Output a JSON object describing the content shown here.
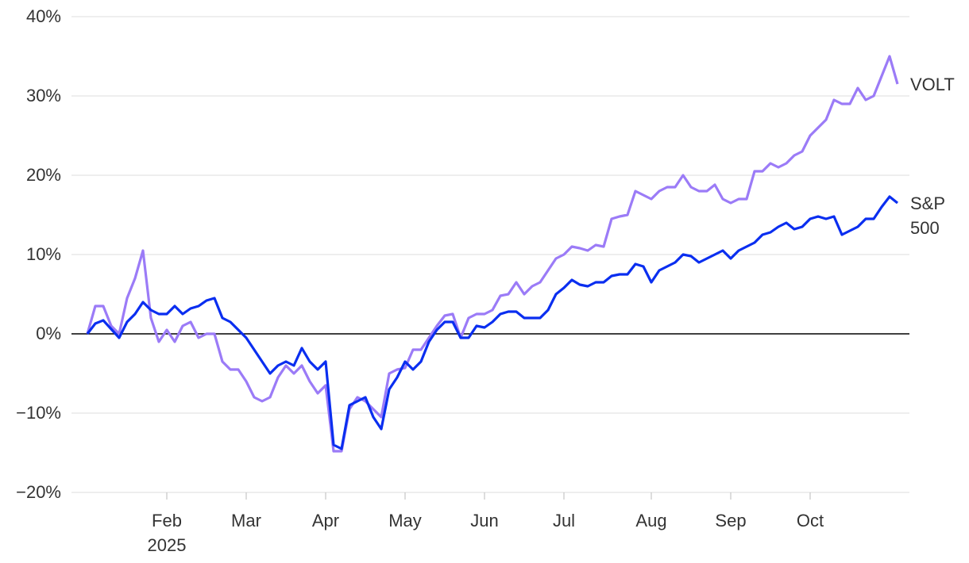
{
  "chart_data": {
    "type": "line",
    "categories": [
      null,
      null,
      null,
      null,
      null,
      null,
      null,
      null,
      null,
      null,
      "Feb 2025",
      null,
      null,
      null,
      null,
      null,
      null,
      null,
      null,
      null,
      "Mar",
      null,
      null,
      null,
      null,
      null,
      null,
      null,
      null,
      null,
      "Apr",
      null,
      null,
      null,
      null,
      null,
      null,
      null,
      null,
      null,
      "May",
      null,
      null,
      null,
      null,
      null,
      null,
      null,
      null,
      null,
      "Jun",
      null,
      null,
      null,
      null,
      null,
      null,
      null,
      null,
      null,
      "Jul",
      null,
      null,
      null,
      null,
      null,
      null,
      null,
      null,
      null,
      null,
      "Aug",
      null,
      null,
      null,
      null,
      null,
      null,
      null,
      null,
      null,
      "Sep",
      null,
      null,
      null,
      null,
      null,
      null,
      null,
      null,
      null,
      "Oct",
      null,
      null,
      null,
      null,
      null,
      null,
      null,
      null,
      null,
      null,
      null
    ],
    "series": [
      {
        "name": "VOLT",
        "color": "#9b7bf7",
        "values": [
          0,
          3.5,
          3.5,
          1.0,
          0.0,
          4.5,
          7.0,
          10.5,
          2.0,
          -1.0,
          0.5,
          -1.0,
          1.0,
          1.5,
          -0.5,
          0.0,
          0.0,
          -3.5,
          -4.5,
          -4.5,
          -6.0,
          -8.0,
          -8.5,
          -8.0,
          -5.5,
          -4.0,
          -5.0,
          -4.0,
          -6.0,
          -7.5,
          -6.5,
          -14.8,
          -14.8,
          -9.5,
          -8.0,
          -8.5,
          -9.5,
          -10.5,
          -5.0,
          -4.5,
          -4.3,
          -2.0,
          -2.0,
          -0.5,
          1.0,
          2.3,
          2.5,
          -0.5,
          2.0,
          2.5,
          2.5,
          3.0,
          4.8,
          5.0,
          6.5,
          5.0,
          6.0,
          6.5,
          8.0,
          9.5,
          10.0,
          11.0,
          10.8,
          10.5,
          11.2,
          11.0,
          14.5,
          14.8,
          15.0,
          18.0,
          17.5,
          17.0,
          18.0,
          18.5,
          18.5,
          20.0,
          18.5,
          18.0,
          18.0,
          18.8,
          17.0,
          16.5,
          17.0,
          17.0,
          20.5,
          20.5,
          21.5,
          21.0,
          21.5,
          22.5,
          23.0,
          25.0,
          26.0,
          27.0,
          29.5,
          29.0,
          29.0,
          31.0,
          29.5,
          30.0,
          32.5,
          35.0,
          31.5
        ]
      },
      {
        "name": "S&P 500",
        "color": "#0a2ef0",
        "values": [
          0,
          1.3,
          1.7,
          0.6,
          -0.5,
          1.5,
          2.5,
          4.0,
          3.0,
          2.5,
          2.5,
          3.5,
          2.5,
          3.2,
          3.5,
          4.2,
          4.5,
          2.0,
          1.5,
          0.5,
          -0.5,
          -2.0,
          -3.5,
          -5.0,
          -4.0,
          -3.5,
          -4.0,
          -1.8,
          -3.5,
          -4.5,
          -3.5,
          -14.0,
          -14.5,
          -9.0,
          -8.5,
          -8.0,
          -10.5,
          -12.0,
          -7.0,
          -5.5,
          -3.5,
          -4.5,
          -3.5,
          -1.0,
          0.5,
          1.5,
          1.5,
          -0.5,
          -0.5,
          1.0,
          0.8,
          1.5,
          2.5,
          2.8,
          2.8,
          2.0,
          2.0,
          2.0,
          3.0,
          5.0,
          5.8,
          6.8,
          6.2,
          6.0,
          6.5,
          6.5,
          7.3,
          7.5,
          7.5,
          8.8,
          8.5,
          6.5,
          8.0,
          8.5,
          9.0,
          10.0,
          9.8,
          9.0,
          9.5,
          10.0,
          10.5,
          9.5,
          10.5,
          11.0,
          11.5,
          12.5,
          12.8,
          13.5,
          14.0,
          13.2,
          13.5,
          14.5,
          14.8,
          14.5,
          14.8,
          12.5,
          13.0,
          13.5,
          14.5,
          14.5,
          16.0,
          17.3,
          16.5
        ]
      }
    ],
    "ylim": [
      -20,
      40
    ],
    "yticks": [
      {
        "value": -20,
        "label": "−20%"
      },
      {
        "value": -10,
        "label": "−10%"
      },
      {
        "value": 0,
        "label": "0%"
      },
      {
        "value": 10,
        "label": "10%"
      },
      {
        "value": 20,
        "label": "20%"
      },
      {
        "value": 30,
        "label": "30%"
      },
      {
        "value": 40,
        "label": "40%"
      }
    ],
    "grid": true
  }
}
